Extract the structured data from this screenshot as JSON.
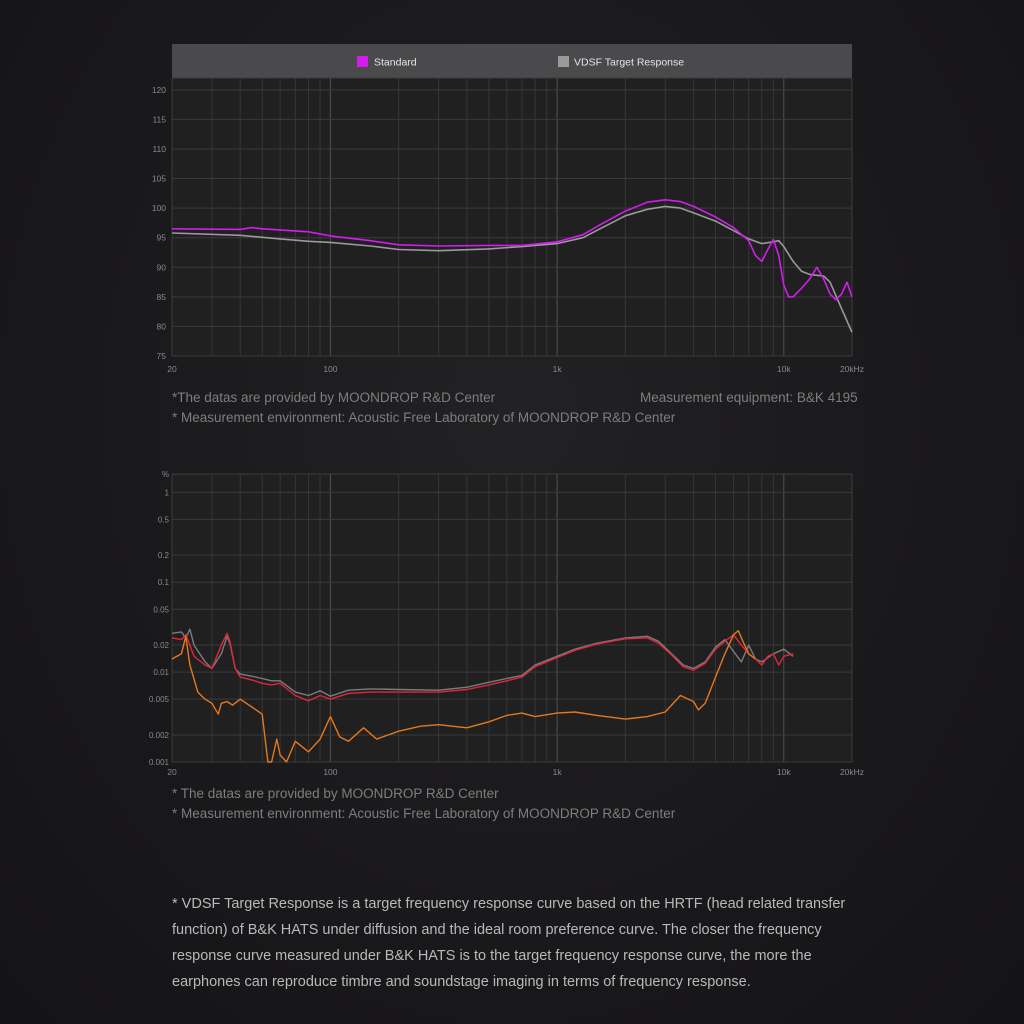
{
  "fr_chart": {
    "chart_data": {
      "type": "line",
      "xscale": "log",
      "xlim": [
        20,
        20000
      ],
      "ylim": [
        75,
        122
      ],
      "x_ticks": [
        {
          "v": 20,
          "label": "20"
        },
        {
          "v": 100,
          "label": "100"
        },
        {
          "v": 1000,
          "label": "1k"
        },
        {
          "v": 10000,
          "label": "10k"
        },
        {
          "v": 20000,
          "label": "20kHz"
        }
      ],
      "y_ticks": [
        75,
        80,
        85,
        90,
        95,
        100,
        105,
        110,
        115,
        120
      ],
      "series": [
        {
          "name": "Standard",
          "color": "#d41bf0",
          "points": [
            [
              20,
              96.5
            ],
            [
              40,
              96.4
            ],
            [
              45,
              96.7
            ],
            [
              50,
              96.5
            ],
            [
              80,
              96
            ],
            [
              100,
              95.3
            ],
            [
              150,
              94.5
            ],
            [
              200,
              93.8
            ],
            [
              300,
              93.6
            ],
            [
              500,
              93.7
            ],
            [
              700,
              93.7
            ],
            [
              1000,
              94.3
            ],
            [
              1300,
              95.5
            ],
            [
              1600,
              97.5
            ],
            [
              2000,
              99.5
            ],
            [
              2500,
              101
            ],
            [
              3000,
              101.4
            ],
            [
              3500,
              101.1
            ],
            [
              4000,
              100.3
            ],
            [
              5000,
              98.5
            ],
            [
              6000,
              96.7
            ],
            [
              7000,
              94.5
            ],
            [
              7500,
              92
            ],
            [
              8000,
              91
            ],
            [
              8500,
              93
            ],
            [
              9000,
              94.7
            ],
            [
              9500,
              92
            ],
            [
              10000,
              87
            ],
            [
              10500,
              85
            ],
            [
              11000,
              85
            ],
            [
              12000,
              86.5
            ],
            [
              13000,
              88
            ],
            [
              14000,
              90
            ],
            [
              15000,
              88
            ],
            [
              16000,
              85.5
            ],
            [
              17000,
              84.5
            ],
            [
              18000,
              85.5
            ],
            [
              19000,
              87.5
            ],
            [
              20000,
              85
            ]
          ]
        },
        {
          "name": "VDSF Target Response",
          "color": "#9a9a9a",
          "points": [
            [
              20,
              95.8
            ],
            [
              40,
              95.4
            ],
            [
              60,
              94.8
            ],
            [
              80,
              94.4
            ],
            [
              100,
              94.2
            ],
            [
              150,
              93.6
            ],
            [
              200,
              93
            ],
            [
              300,
              92.8
            ],
            [
              500,
              93.1
            ],
            [
              700,
              93.5
            ],
            [
              1000,
              94
            ],
            [
              1300,
              95
            ],
            [
              1600,
              96.8
            ],
            [
              2000,
              98.7
            ],
            [
              2500,
              99.8
            ],
            [
              3000,
              100.3
            ],
            [
              3500,
              100
            ],
            [
              4000,
              99.2
            ],
            [
              5000,
              97.8
            ],
            [
              6000,
              96.2
            ],
            [
              7000,
              94.8
            ],
            [
              8000,
              94
            ],
            [
              9000,
              94.3
            ],
            [
              9500,
              94.5
            ],
            [
              10000,
              93.5
            ],
            [
              11000,
              91
            ],
            [
              12000,
              89.3
            ],
            [
              13000,
              88.8
            ],
            [
              15000,
              88.5
            ],
            [
              16000,
              87.5
            ],
            [
              18000,
              83
            ],
            [
              20000,
              79
            ]
          ]
        }
      ]
    },
    "legend": [
      {
        "label": "Standard",
        "color": "#d41bf0"
      },
      {
        "label": "VDSF Target Response",
        "color": "#9a9a9a"
      }
    ],
    "notes": {
      "source": "*The datas are provided by MOONDROP R&D Center",
      "equipment": "Measurement equipment: B&K 4195",
      "environment": "* Measurement environment: Acoustic Free Laboratory of MOONDROP R&D Center"
    }
  },
  "thd_chart": {
    "chart_data": {
      "type": "line",
      "xscale": "log",
      "yscale": "log",
      "xlim": [
        20,
        20000
      ],
      "ylim": [
        0.001,
        1.6
      ],
      "unit_label": "%",
      "x_ticks": [
        {
          "v": 20,
          "label": "20"
        },
        {
          "v": 100,
          "label": "100"
        },
        {
          "v": 1000,
          "label": "1k"
        },
        {
          "v": 10000,
          "label": "10k"
        },
        {
          "v": 20000,
          "label": "20kHz"
        }
      ],
      "y_ticks": [
        {
          "v": 1,
          "label": "1"
        },
        {
          "v": 0.5,
          "label": "0.5"
        },
        {
          "v": 0.2,
          "label": "0.2"
        },
        {
          "v": 0.1,
          "label": "0.1"
        },
        {
          "v": 0.05,
          "label": "0.05"
        },
        {
          "v": 0.02,
          "label": "0.02"
        },
        {
          "v": 0.01,
          "label": "0.01"
        },
        {
          "v": 0.005,
          "label": "0.005"
        },
        {
          "v": 0.002,
          "label": "0.002"
        },
        {
          "v": 0.001,
          "label": "0.001"
        }
      ],
      "series": [
        {
          "color": "#7c7c7c",
          "points": [
            [
              20,
              0.027
            ],
            [
              22,
              0.028
            ],
            [
              23,
              0.024
            ],
            [
              24,
              0.03
            ],
            [
              25,
              0.02
            ],
            [
              28,
              0.013
            ],
            [
              30,
              0.011
            ],
            [
              33,
              0.016
            ],
            [
              35,
              0.025
            ],
            [
              36,
              0.021
            ],
            [
              38,
              0.011
            ],
            [
              40,
              0.0095
            ],
            [
              45,
              0.009
            ],
            [
              50,
              0.0085
            ],
            [
              55,
              0.008
            ],
            [
              60,
              0.008
            ],
            [
              70,
              0.006
            ],
            [
              80,
              0.0055
            ],
            [
              90,
              0.0062
            ],
            [
              100,
              0.0054
            ],
            [
              120,
              0.0063
            ],
            [
              150,
              0.0065
            ],
            [
              200,
              0.0064
            ],
            [
              300,
              0.0063
            ],
            [
              400,
              0.0068
            ],
            [
              500,
              0.0077
            ],
            [
              600,
              0.0085
            ],
            [
              700,
              0.0092
            ],
            [
              800,
              0.012
            ],
            [
              1000,
              0.015
            ],
            [
              1200,
              0.018
            ],
            [
              1500,
              0.021
            ],
            [
              2000,
              0.024
            ],
            [
              2500,
              0.025
            ],
            [
              2800,
              0.022
            ],
            [
              3200,
              0.016
            ],
            [
              3600,
              0.012
            ],
            [
              4000,
              0.011
            ],
            [
              4500,
              0.013
            ],
            [
              5000,
              0.019
            ],
            [
              5500,
              0.023
            ],
            [
              6000,
              0.017
            ],
            [
              6500,
              0.013
            ],
            [
              7000,
              0.02
            ],
            [
              7500,
              0.014
            ],
            [
              8000,
              0.013
            ],
            [
              9000,
              0.016
            ],
            [
              10000,
              0.018
            ],
            [
              11000,
              0.015
            ]
          ]
        },
        {
          "color": "#e0263a",
          "points": [
            [
              20,
              0.024
            ],
            [
              22,
              0.023
            ],
            [
              23,
              0.026
            ],
            [
              24,
              0.02
            ],
            [
              25,
              0.015
            ],
            [
              28,
              0.012
            ],
            [
              30,
              0.011
            ],
            [
              33,
              0.02
            ],
            [
              35,
              0.027
            ],
            [
              36,
              0.022
            ],
            [
              38,
              0.011
            ],
            [
              40,
              0.0088
            ],
            [
              45,
              0.0082
            ],
            [
              50,
              0.0075
            ],
            [
              55,
              0.0072
            ],
            [
              60,
              0.0075
            ],
            [
              70,
              0.0055
            ],
            [
              80,
              0.0048
            ],
            [
              90,
              0.0055
            ],
            [
              100,
              0.005
            ],
            [
              120,
              0.0058
            ],
            [
              150,
              0.006
            ],
            [
              200,
              0.006
            ],
            [
              300,
              0.006
            ],
            [
              400,
              0.0064
            ],
            [
              500,
              0.0072
            ],
            [
              600,
              0.008
            ],
            [
              700,
              0.0088
            ],
            [
              800,
              0.0115
            ],
            [
              1000,
              0.0145
            ],
            [
              1200,
              0.0175
            ],
            [
              1500,
              0.0205
            ],
            [
              2000,
              0.0235
            ],
            [
              2500,
              0.024
            ],
            [
              2800,
              0.021
            ],
            [
              3200,
              0.0155
            ],
            [
              3600,
              0.0115
            ],
            [
              4000,
              0.0105
            ],
            [
              4500,
              0.0125
            ],
            [
              5000,
              0.018
            ],
            [
              5500,
              0.022
            ],
            [
              6000,
              0.026
            ],
            [
              6500,
              0.02
            ],
            [
              7000,
              0.016
            ],
            [
              7500,
              0.014
            ],
            [
              8000,
              0.012
            ],
            [
              8500,
              0.015
            ],
            [
              9000,
              0.016
            ],
            [
              9500,
              0.012
            ],
            [
              10000,
              0.015
            ],
            [
              11000,
              0.016
            ]
          ]
        },
        {
          "color": "#e5781e",
          "points": [
            [
              20,
              0.014
            ],
            [
              22,
              0.016
            ],
            [
              23,
              0.025
            ],
            [
              24,
              0.012
            ],
            [
              26,
              0.006
            ],
            [
              28,
              0.005
            ],
            [
              30,
              0.0045
            ],
            [
              32,
              0.0034
            ],
            [
              33,
              0.0045
            ],
            [
              35,
              0.0047
            ],
            [
              37,
              0.0043
            ],
            [
              40,
              0.005
            ],
            [
              45,
              0.0041
            ],
            [
              50,
              0.0034
            ],
            [
              53,
              0.001
            ],
            [
              55,
              0.001
            ],
            [
              58,
              0.0018
            ],
            [
              60,
              0.0012
            ],
            [
              64,
              0.001
            ],
            [
              70,
              0.0017
            ],
            [
              80,
              0.0013
            ],
            [
              90,
              0.0018
            ],
            [
              100,
              0.0032
            ],
            [
              110,
              0.0019
            ],
            [
              120,
              0.0017
            ],
            [
              140,
              0.0024
            ],
            [
              160,
              0.0018
            ],
            [
              180,
              0.002
            ],
            [
              200,
              0.0022
            ],
            [
              250,
              0.0025
            ],
            [
              300,
              0.0026
            ],
            [
              400,
              0.0024
            ],
            [
              500,
              0.0028
            ],
            [
              600,
              0.0033
            ],
            [
              700,
              0.0035
            ],
            [
              800,
              0.0032
            ],
            [
              1000,
              0.0035
            ],
            [
              1200,
              0.0036
            ],
            [
              1500,
              0.0033
            ],
            [
              2000,
              0.003
            ],
            [
              2500,
              0.0032
            ],
            [
              3000,
              0.0036
            ],
            [
              3500,
              0.0055
            ],
            [
              4000,
              0.0047
            ],
            [
              4200,
              0.0038
            ],
            [
              4500,
              0.0045
            ],
            [
              5000,
              0.0088
            ],
            [
              5500,
              0.016
            ],
            [
              6000,
              0.026
            ],
            [
              6300,
              0.029
            ],
            [
              6600,
              0.022
            ],
            [
              7000,
              0.016
            ],
            [
              7500,
              0.014
            ]
          ]
        }
      ]
    },
    "notes": {
      "source": "* The datas are provided by MOONDROP R&D Center",
      "environment": "* Measurement environment: Acoustic Free Laboratory of MOONDROP R&D Center"
    }
  },
  "footnote": "* VDSF Target Response is a target frequency response curve based on the HRTF (head related transfer function) of B&K HATS under diffusion and the ideal room preference curve. The closer the frequency response curve measured under B&K HATS is to the target frequency response curve, the more the earphones can reproduce timbre and soundstage imaging in terms of frequency response."
}
